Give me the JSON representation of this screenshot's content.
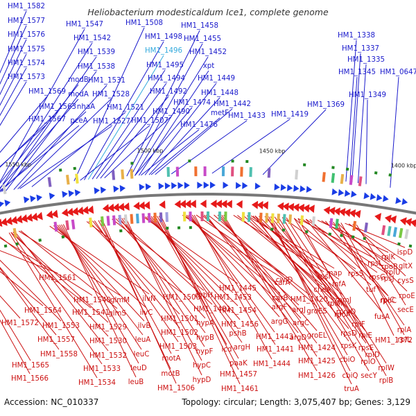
{
  "title": "Heliobacterium modesticaldum Ice1, complete genome",
  "footer": {
    "accession": "Accession: NC_010337",
    "summary": "Topology: circular; Length: 3,075,407 bp; Genes: 3,129"
  },
  "scale_labels": [
    "1550 kbp",
    "1500 kbp",
    "1450 kbp",
    "1400 kbp"
  ],
  "colors": {
    "top_labels": "#1a1acc",
    "highlight": "#33aadd",
    "bottom_labels": "#cc1111",
    "forward": "#1a3de6",
    "reverse": "#e61a1a",
    "backbone": "#777777",
    "rna": "#228822"
  },
  "top_labels": [
    {
      "text": "HM1_1582"
    },
    {
      "text": "HM1_1577"
    },
    {
      "text": "HM1_1576"
    },
    {
      "text": "HM1_1575"
    },
    {
      "text": "HM1_1574"
    },
    {
      "text": "HM1_1573"
    },
    {
      "text": "HM1_1569"
    },
    {
      "text": "HM1_1563"
    },
    {
      "text": "HM1_1567"
    },
    {
      "text": "HM1_1547"
    },
    {
      "text": "HM1_1542"
    },
    {
      "text": "HM1_1539"
    },
    {
      "text": "HM1_1538"
    },
    {
      "text": "modB"
    },
    {
      "text": "HM1_1531"
    },
    {
      "text": "modA"
    },
    {
      "text": "nhaA"
    },
    {
      "text": "HM1_1528"
    },
    {
      "text": "pceA"
    },
    {
      "text": "HM1_1527"
    },
    {
      "text": "HM1_1521"
    },
    {
      "text": "HM1_1508"
    },
    {
      "text": "HM1_1498"
    },
    {
      "text": "HM1_1496"
    },
    {
      "text": "HM1_1495"
    },
    {
      "text": "HM1_1494"
    },
    {
      "text": "HM1_1492"
    },
    {
      "text": "HM1_1490"
    },
    {
      "text": "HM1_1507"
    },
    {
      "text": "HM1_1458"
    },
    {
      "text": "HM1_1455"
    },
    {
      "text": "HM1_1452"
    },
    {
      "text": "xpt"
    },
    {
      "text": "HM1_1449"
    },
    {
      "text": "HM1_1448"
    },
    {
      "text": "HM1_1474"
    },
    {
      "text": "HM1_1442"
    },
    {
      "text": "metF"
    },
    {
      "text": "HM1_1476"
    },
    {
      "text": "HM1_1433"
    },
    {
      "text": "HM1_1419"
    },
    {
      "text": "HM1_1369"
    },
    {
      "text": "HM1_1338"
    },
    {
      "text": "HM1_1337"
    },
    {
      "text": "HM1_1335"
    },
    {
      "text": "HM1_1345"
    },
    {
      "text": "HM1_0647"
    },
    {
      "text": "HM1_1349"
    }
  ],
  "bottom_labels": [
    {
      "text": "HM1_1561"
    },
    {
      "text": "HM1_1564"
    },
    {
      "text": "HM1_1572"
    },
    {
      "text": "HM1_1553"
    },
    {
      "text": "HM1_1557"
    },
    {
      "text": "HM1_1558"
    },
    {
      "text": "HM1_1565"
    },
    {
      "text": "HM1_1566"
    },
    {
      "text": "HM1_1540"
    },
    {
      "text": "HM1_1541"
    },
    {
      "text": "HM1_1529"
    },
    {
      "text": "HM1_1530"
    },
    {
      "text": "HM1_1532"
    },
    {
      "text": "HM1_1533"
    },
    {
      "text": "HM1_1534"
    },
    {
      "text": "glmM"
    },
    {
      "text": "glmS"
    },
    {
      "text": "ilvN"
    },
    {
      "text": "ilvC"
    },
    {
      "text": "ilvB"
    },
    {
      "text": "leuA"
    },
    {
      "text": "leuC"
    },
    {
      "text": "leuD"
    },
    {
      "text": "leuB"
    },
    {
      "text": "HM1_1500"
    },
    {
      "text": "HM1_1501"
    },
    {
      "text": "HM1_1502"
    },
    {
      "text": "HM1_1503"
    },
    {
      "text": "motA"
    },
    {
      "text": "motB"
    },
    {
      "text": "HM1_1506"
    },
    {
      "text": "cybH"
    },
    {
      "text": "HM1_1481"
    },
    {
      "text": "hypA"
    },
    {
      "text": "hypB"
    },
    {
      "text": "hypF"
    },
    {
      "text": "hypC"
    },
    {
      "text": "hypD"
    },
    {
      "text": "HM1_1445"
    },
    {
      "text": "HM1_1453"
    },
    {
      "text": "HM1_1454"
    },
    {
      "text": "HM1_1456"
    },
    {
      "text": "pshB"
    },
    {
      "text": "argH"
    },
    {
      "text": "icd"
    },
    {
      "text": "paaK"
    },
    {
      "text": "HM1_1457"
    },
    {
      "text": "HM1_1461"
    },
    {
      "text": "carA"
    },
    {
      "text": "carB"
    },
    {
      "text": "argF"
    },
    {
      "text": "argG"
    },
    {
      "text": "HM1_1443"
    },
    {
      "text": "HM1_1441"
    },
    {
      "text": "HM1_1444"
    },
    {
      "text": "cwlD"
    },
    {
      "text": "HM1_1420"
    },
    {
      "text": "argJ"
    },
    {
      "text": "argC"
    },
    {
      "text": "argD"
    },
    {
      "text": "groES"
    },
    {
      "text": "groEL"
    },
    {
      "text": "HM1_1424"
    },
    {
      "text": "HM1_1425"
    },
    {
      "text": "HM1_1426"
    },
    {
      "text": "rpsI"
    },
    {
      "text": "cheA"
    },
    {
      "text": "rplM"
    },
    {
      "text": "rpoA"
    },
    {
      "text": "rpsD"
    },
    {
      "text": "rpsK"
    },
    {
      "text": "map"
    },
    {
      "text": "infA"
    },
    {
      "text": "rpmJ"
    },
    {
      "text": "rpmD"
    },
    {
      "text": "rplF"
    },
    {
      "text": "rplE"
    },
    {
      "text": "rpsE"
    },
    {
      "text": "cbiO"
    },
    {
      "text": "cbiQ"
    },
    {
      "text": "truA"
    },
    {
      "text": "secY"
    },
    {
      "text": "rplO"
    },
    {
      "text": "rplD"
    },
    {
      "text": "rplW"
    },
    {
      "text": "rplB"
    },
    {
      "text": "rpsS"
    },
    {
      "text": "rpsL"
    },
    {
      "text": "rpsG"
    },
    {
      "text": "tuf"
    },
    {
      "text": "rpsJ"
    },
    {
      "text": "rplC"
    },
    {
      "text": "fusA"
    },
    {
      "text": "rplK"
    },
    {
      "text": "rpoB"
    },
    {
      "text": "rpoC"
    },
    {
      "text": "rplU"
    },
    {
      "text": "rpoE"
    },
    {
      "text": "rplA"
    },
    {
      "text": "rplL"
    },
    {
      "text": "ispD"
    },
    {
      "text": "gltX"
    },
    {
      "text": "cysS"
    },
    {
      "text": "secE"
    },
    {
      "text": "HM1_1372"
    }
  ]
}
